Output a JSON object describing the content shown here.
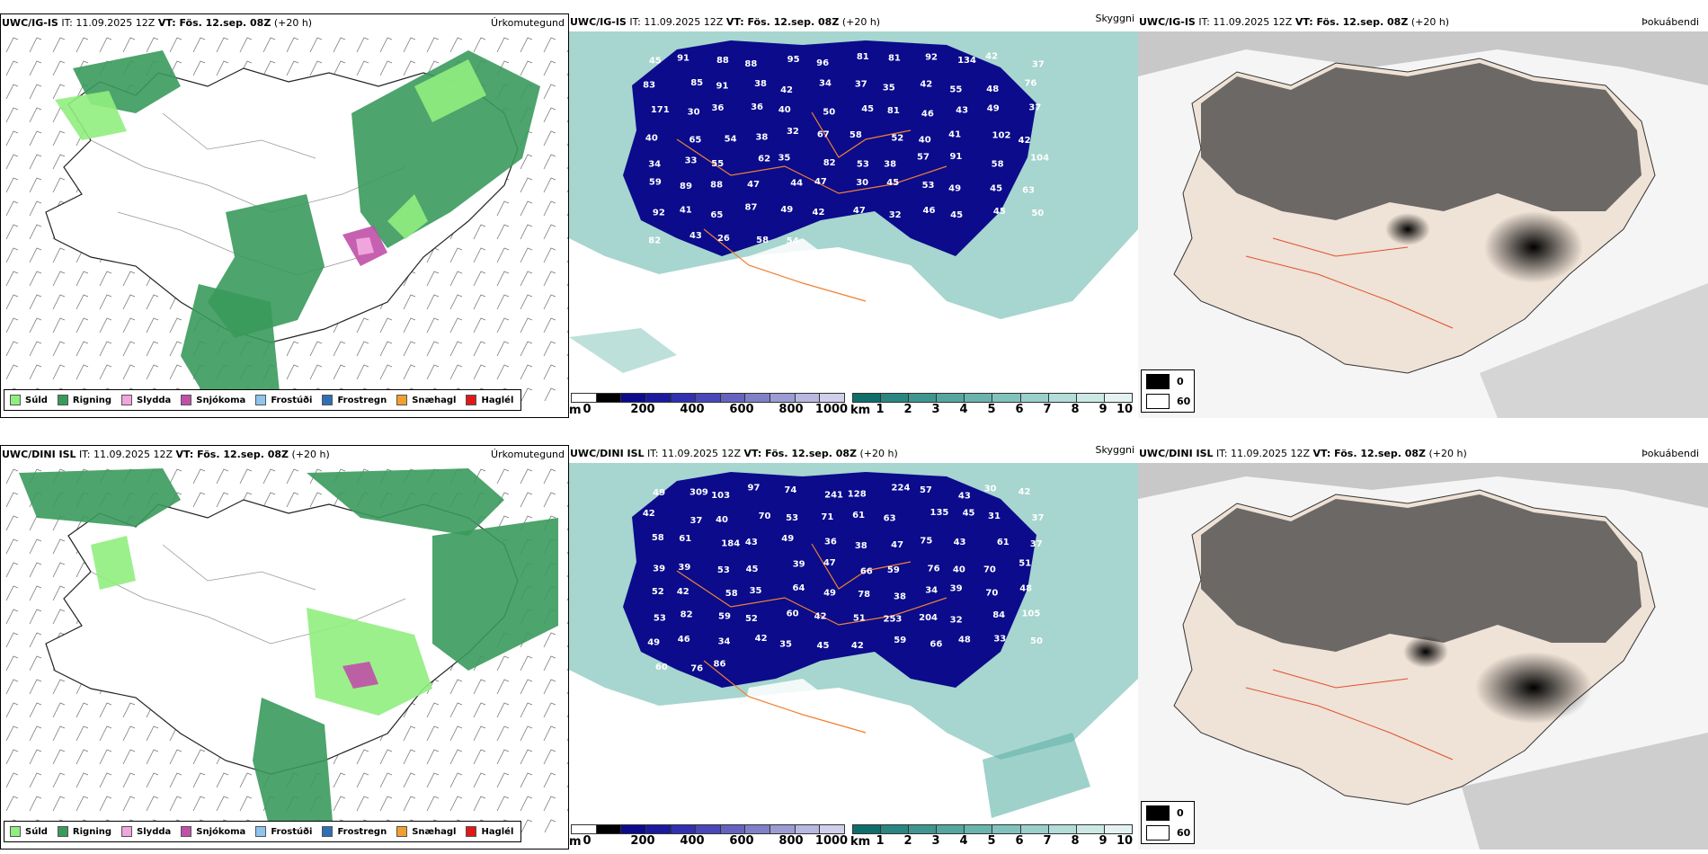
{
  "panels": {
    "r1c1": {
      "model": "UWC/IG-IS",
      "it": "IT: 11.09.2025 12Z",
      "vt": "VT: Fös. 12.sep. 08Z",
      "lead": "(+20 h)",
      "param": "Úrkomutegund"
    },
    "r1c2": {
      "model": "UWC/IG-IS",
      "it": "IT: 11.09.2025 12Z",
      "vt": "VT: Fös. 12.sep. 08Z",
      "lead": "(+20 h)",
      "param": "Skyggni"
    },
    "r1c3": {
      "model": "UWC/IG-IS",
      "it": "IT: 11.09.2025 12Z",
      "vt": "VT: Fös. 12.sep. 08Z",
      "lead": "(+20 h)",
      "param": "Þokuábendi"
    },
    "r2c1": {
      "model": "UWC/DINI ISL",
      "it": "IT: 11.09.2025 12Z",
      "vt": "VT: Fös. 12.sep. 08Z",
      "lead": "(+20 h)",
      "param": "Úrkomutegund"
    },
    "r2c2": {
      "model": "UWC/DINI ISL",
      "it": "IT: 11.09.2025 12Z",
      "vt": "VT: Fös. 12.sep. 08Z",
      "lead": "(+20 h)",
      "param": "Skyggni"
    },
    "r2c3": {
      "model": "UWC/DINI ISL",
      "it": "IT: 11.09.2025 12Z",
      "vt": "VT: Fös. 12.sep. 08Z",
      "lead": "(+20 h)",
      "param": "Þokuábendi"
    }
  },
  "precip_legend": [
    {
      "label": "Súld",
      "color": "#90ee80"
    },
    {
      "label": "Rigning",
      "color": "#3a9a5c"
    },
    {
      "label": "Slydda",
      "color": "#f0a6dc"
    },
    {
      "label": "Snjókoma",
      "color": "#c050a8"
    },
    {
      "label": "Frostúði",
      "color": "#8ec4ee"
    },
    {
      "label": "Frostregn",
      "color": "#2f6fb5"
    },
    {
      "label": "Snæhagl",
      "color": "#f0a030"
    },
    {
      "label": "Haglél",
      "color": "#e01818"
    }
  ],
  "ceiling_bar": {
    "unit": "m",
    "ticks": [
      "0",
      "200",
      "400",
      "600",
      "800",
      "1000"
    ],
    "colors": [
      "#ffffff",
      "#000000",
      "#0b0b8c",
      "#1a1aa0",
      "#3030b0",
      "#4848b8",
      "#6464c0",
      "#8080c8",
      "#9c9cd4",
      "#b8b8e0",
      "#d0d0ec"
    ]
  },
  "visibility_bar": {
    "unit": "km",
    "ticks": [
      "1",
      "2",
      "3",
      "4",
      "5",
      "6",
      "7",
      "8",
      "9",
      "10"
    ],
    "colors": [
      "#0f6e6a",
      "#2a8680",
      "#3f9690",
      "#55a6a0",
      "#6ab4ae",
      "#82c2bc",
      "#9acfca",
      "#b4dcd8",
      "#cce8e4",
      "#e4f3f1"
    ]
  },
  "fog_legend": {
    "items": [
      {
        "label": "0",
        "color": "#000000"
      },
      {
        "label": "60",
        "color": "#ffffff"
      }
    ]
  },
  "labels_r1": [
    "45",
    "91",
    "88",
    "88",
    "95",
    "96",
    "81",
    "81",
    "92",
    "134",
    "42",
    "37",
    "83",
    "85",
    "91",
    "38",
    "42",
    "34",
    "37",
    "35",
    "42",
    "55",
    "48",
    "76",
    "171",
    "30",
    "36",
    "36",
    "40",
    "50",
    "45",
    "81",
    "46",
    "43",
    "49",
    "37",
    "40",
    "65",
    "54",
    "38",
    "32",
    "67",
    "58",
    "52",
    "40",
    "41",
    "102",
    "42",
    "34",
    "33",
    "55",
    "62",
    "35",
    "82",
    "53",
    "38",
    "57",
    "91",
    "58",
    "104",
    "59",
    "89",
    "88",
    "47",
    "44",
    "47",
    "30",
    "45",
    "53",
    "49",
    "45",
    "63",
    "92",
    "41",
    "65",
    "87",
    "49",
    "42",
    "47",
    "32",
    "46",
    "45",
    "45",
    "50",
    "82",
    "43",
    "26",
    "58",
    "54"
  ],
  "labels_r2": [
    "49",
    "309",
    "103",
    "97",
    "74",
    "241",
    "128",
    "224",
    "57",
    "43",
    "30",
    "42",
    "42",
    "37",
    "40",
    "70",
    "53",
    "71",
    "61",
    "63",
    "135",
    "45",
    "31",
    "37",
    "58",
    "61",
    "184",
    "43",
    "49",
    "36",
    "38",
    "47",
    "75",
    "43",
    "61",
    "37",
    "39",
    "39",
    "53",
    "45",
    "39",
    "47",
    "66",
    "59",
    "76",
    "40",
    "70",
    "51",
    "52",
    "42",
    "58",
    "35",
    "64",
    "49",
    "78",
    "38",
    "34",
    "39",
    "70",
    "48",
    "53",
    "82",
    "59",
    "52",
    "60",
    "42",
    "51",
    "253",
    "204",
    "32",
    "84",
    "105",
    "49",
    "46",
    "34",
    "42",
    "35",
    "45",
    "42",
    "59",
    "66",
    "48",
    "33",
    "50",
    "60",
    "76",
    "86"
  ]
}
